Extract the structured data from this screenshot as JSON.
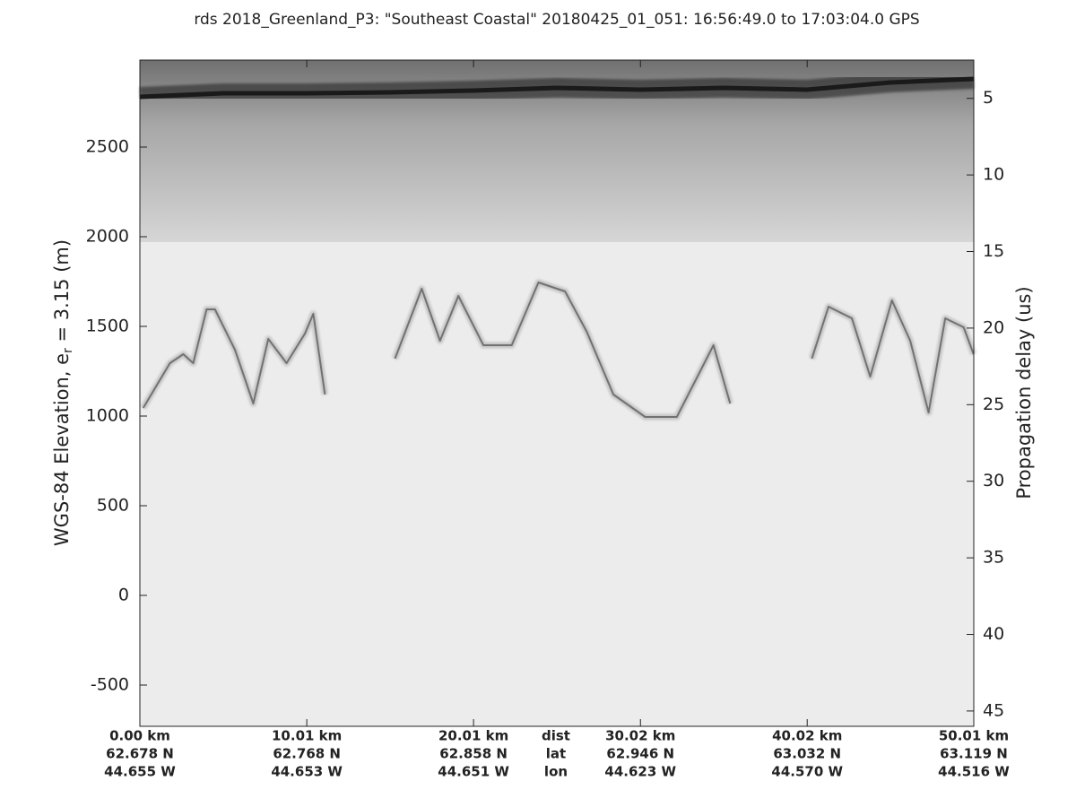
{
  "chart_data": {
    "type": "echogram",
    "title": "rds 2018_Greenland_P3: \"Southeast Coastal\"  20180425_01_051: 16:56:49.0 to 17:03:04.0 GPS",
    "y_label": "WGS-84 Elevation, e",
    "y_label_sub": "r",
    "y_label_tail": " = 3.15 (m)",
    "y2_label": "Propagation delay (us)",
    "xlim": [
      0,
      50.01
    ],
    "xticks": [
      {
        "value": 0,
        "label": "0.00 km"
      },
      {
        "value": 10.01,
        "label": "10.01 km"
      },
      {
        "value": 20.01,
        "label": "20.01 km"
      },
      {
        "value": 30.02,
        "label": "30.02 km"
      },
      {
        "value": 40.02,
        "label": "40.02 km"
      },
      {
        "value": 50.01,
        "label": "50.01 km"
      }
    ],
    "lat_labels": [
      "62.678 N",
      "62.768 N",
      "62.858 N",
      "62.946 N",
      "63.032 N",
      "63.119 N"
    ],
    "lon_labels": [
      "44.655 W",
      "44.653 W",
      "44.651 W",
      "44.623 W",
      "44.570 W",
      "44.516 W"
    ],
    "row_labels": [
      "dist",
      "lat",
      "lon"
    ],
    "ylim": [
      -730,
      2985
    ],
    "yticks": [
      -500,
      0,
      500,
      1000,
      1500,
      2000,
      2500
    ],
    "y2lim": [
      46.0,
      2.5
    ],
    "y2ticks": [
      5,
      10,
      15,
      20,
      25,
      30,
      35,
      40,
      45
    ],
    "surface": {
      "color": "#1a1a1a",
      "x": [
        0,
        5,
        10,
        15,
        20,
        25,
        30,
        35,
        40,
        45,
        50
      ],
      "values": [
        2780,
        2800,
        2800,
        2805,
        2815,
        2830,
        2820,
        2830,
        2820,
        2860,
        2880
      ]
    },
    "bed": {
      "color": "#555555",
      "x": [
        0.2,
        1.8,
        2.6,
        3.2,
        4.0,
        4.5,
        5.7,
        6.8,
        7.7,
        8.8,
        9.9,
        10.4,
        11.1,
        13.0,
        15.3,
        16.9,
        18.0,
        19.1,
        20.6,
        22.3,
        23.9,
        25.5,
        26.8,
        28.4,
        30.3,
        32.2,
        34.4,
        35.4,
        38.0,
        40.3,
        41.3,
        42.7,
        43.8,
        45.1,
        46.2,
        47.3,
        48.3,
        49.4,
        50.0
      ],
      "values": [
        1045,
        1295,
        1345,
        1295,
        1595,
        1595,
        1370,
        1070,
        1430,
        1295,
        1460,
        1570,
        1120,
        null,
        1320,
        1710,
        1420,
        1670,
        1395,
        1395,
        1745,
        1695,
        1470,
        1120,
        995,
        995,
        1395,
        1070,
        null,
        1320,
        1610,
        1545,
        1220,
        1645,
        1420,
        1020,
        1545,
        1495,
        1345
      ]
    }
  }
}
